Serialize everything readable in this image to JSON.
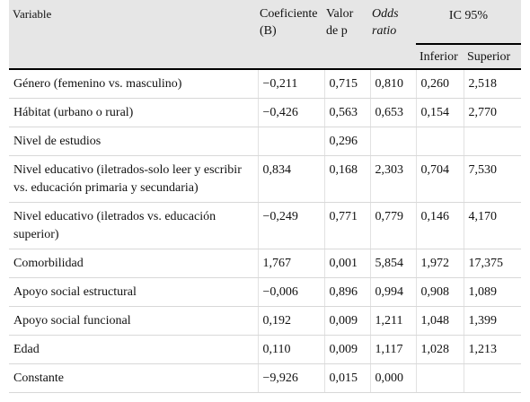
{
  "header": {
    "variable": "Variable",
    "coef": "Coeficiente (B)",
    "p": "Valor de p",
    "or": "Odds ratio",
    "ic": "IC 95%",
    "inferior": "Inferior",
    "superior": "Superior"
  },
  "rows": [
    {
      "variable": "Género (femenino vs. masculino)",
      "coef": "−0,211",
      "p": "0,715",
      "or": "0,810",
      "inf": "0,260",
      "sup": "2,518"
    },
    {
      "variable": "Hábitat (urbano o rural)",
      "coef": "−0,426",
      "p": "0,563",
      "or": "0,653",
      "inf": "0,154",
      "sup": "2,770"
    },
    {
      "variable": "Nivel de estudios",
      "coef": "",
      "p": "0,296",
      "or": "",
      "inf": "",
      "sup": ""
    },
    {
      "variable": "Nivel educativo (iletrados-solo leer y escribir vs. educación primaria y secundaria)",
      "coef": "0,834",
      "p": "0,168",
      "or": "2,303",
      "inf": "0,704",
      "sup": "7,530"
    },
    {
      "variable": "Nivel educativo (iletrados vs. educación superior)",
      "coef": "−0,249",
      "p": "0,771",
      "or": "0,779",
      "inf": "0,146",
      "sup": "4,170"
    },
    {
      "variable": "Comorbilidad",
      "coef": "1,767",
      "p": "0,001",
      "or": "5,854",
      "inf": "1,972",
      "sup": "17,375"
    },
    {
      "variable": "Apoyo social estructural",
      "coef": "−0,006",
      "p": "0,896",
      "or": "0,994",
      "inf": "0,908",
      "sup": "1,089"
    },
    {
      "variable": "Apoyo social funcional",
      "coef": "0,192",
      "p": "0,009",
      "or": "1,211",
      "inf": "1,048",
      "sup": "1,399"
    },
    {
      "variable": "Edad",
      "coef": "0,110",
      "p": "0,009",
      "or": "1,117",
      "inf": "1,028",
      "sup": "1,213"
    },
    {
      "variable": "Constante",
      "coef": "−9,926",
      "p": "0,015",
      "or": "0,000",
      "inf": "",
      "sup": ""
    }
  ]
}
